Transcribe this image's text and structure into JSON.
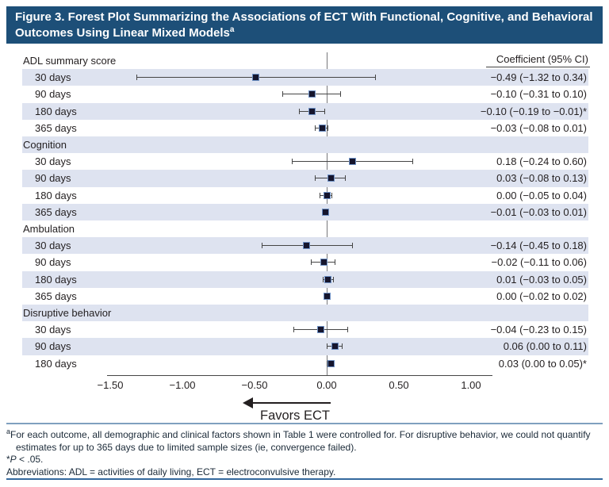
{
  "header": {
    "title": "Figure 3. Forest Plot Summarizing the Associations of ECT With Functional, Cognitive, and Behavioral Outcomes Using Linear Mixed Models",
    "sup": "a"
  },
  "column_header": "Coefficient (95% CI)",
  "chart_data": {
    "type": "forest",
    "title": "Associations of ECT With Functional, Cognitive, and Behavioral Outcomes",
    "favors_label": "Favors ECT",
    "xlim": [
      -1.65,
      1.15
    ],
    "x_ticks": [
      -1.5,
      -1.0,
      -0.5,
      0.0,
      0.5,
      1.0
    ],
    "x_tick_labels": [
      "−1.50",
      "−1.00",
      "−0.50",
      "0.00",
      "0.50",
      "1.00"
    ],
    "grid": false,
    "zero_reference_line": 0,
    "groups": [
      {
        "name": "ADL summary score",
        "rows": [
          {
            "label": "30 days",
            "est": -0.49,
            "lo": -1.32,
            "hi": 0.34,
            "ci_text": "−0.49 (−1.32 to 0.34)"
          },
          {
            "label": "90 days",
            "est": -0.1,
            "lo": -0.31,
            "hi": 0.1,
            "ci_text": "−0.10 (−0.31 to 0.10)"
          },
          {
            "label": "180 days",
            "est": -0.1,
            "lo": -0.19,
            "hi": -0.01,
            "ci_text": "−0.10 (−0.19 to −0.01)*"
          },
          {
            "label": "365 days",
            "est": -0.03,
            "lo": -0.08,
            "hi": 0.01,
            "ci_text": "−0.03 (−0.08 to 0.01)"
          }
        ]
      },
      {
        "name": "Cognition",
        "rows": [
          {
            "label": "30 days",
            "est": 0.18,
            "lo": -0.24,
            "hi": 0.6,
            "ci_text": "0.18 (−0.24 to 0.60)"
          },
          {
            "label": "90 days",
            "est": 0.03,
            "lo": -0.08,
            "hi": 0.13,
            "ci_text": "0.03 (−0.08 to 0.13)"
          },
          {
            "label": "180 days",
            "est": 0.0,
            "lo": -0.05,
            "hi": 0.04,
            "ci_text": "0.00 (−0.05 to 0.04)"
          },
          {
            "label": "365 days",
            "est": -0.01,
            "lo": -0.03,
            "hi": 0.01,
            "ci_text": "−0.01 (−0.03 to 0.01)"
          }
        ]
      },
      {
        "name": "Ambulation",
        "rows": [
          {
            "label": "30 days",
            "est": -0.14,
            "lo": -0.45,
            "hi": 0.18,
            "ci_text": "−0.14 (−0.45 to 0.18)"
          },
          {
            "label": "90 days",
            "est": -0.02,
            "lo": -0.11,
            "hi": 0.06,
            "ci_text": "−0.02 (−0.11 to 0.06)"
          },
          {
            "label": "180 days",
            "est": 0.01,
            "lo": -0.03,
            "hi": 0.05,
            "ci_text": "0.01 (−0.03 to 0.05)"
          },
          {
            "label": "365 days",
            "est": 0.0,
            "lo": -0.02,
            "hi": 0.02,
            "ci_text": "0.00 (−0.02 to 0.02)"
          }
        ]
      },
      {
        "name": "Disruptive behavior",
        "rows": [
          {
            "label": "30 days",
            "est": -0.04,
            "lo": -0.23,
            "hi": 0.15,
            "ci_text": "−0.04 (−0.23 to 0.15)"
          },
          {
            "label": "90 days",
            "est": 0.06,
            "lo": 0.0,
            "hi": 0.11,
            "ci_text": "0.06 (0.00 to 0.11)"
          },
          {
            "label": "180 days",
            "est": 0.03,
            "lo": 0.0,
            "hi": 0.05,
            "ci_text": "0.03 (0.00 to 0.05)*"
          }
        ]
      }
    ]
  },
  "footnotes": {
    "note_a_sup": "a",
    "note_a": "For each outcome, all demographic and clinical factors shown in Table 1 were controlled for. For disruptive behavior, we could not quantify estimates for up to 365 days due to limited sample sizes (ie, convergence failed).",
    "p_star": "*",
    "p_letter": "P",
    "p_rest": " < .05.",
    "abbreviations": "Abbreviations: ADL = activities of daily living, ECT = electroconvulsive therapy."
  },
  "colors": {
    "banner": "#1d4f78",
    "stripe": "#dee3f0",
    "marker_fill": "#15152d",
    "marker_border": "#6e91c5",
    "axis": "#454545",
    "zero_line": "#77787b",
    "separator": "#7fa0bf",
    "bottom_rule": "#34699e"
  }
}
